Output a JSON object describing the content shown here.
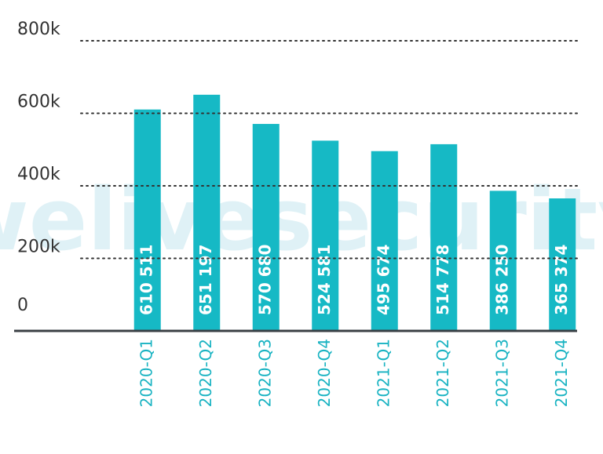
{
  "chart_data": {
    "type": "bar",
    "watermark": "welivesecurity",
    "categories": [
      "2020-Q1",
      "2020-Q2",
      "2020-Q3",
      "2020-Q4",
      "2021-Q1",
      "2021-Q2",
      "2021-Q3",
      "2021-Q4"
    ],
    "values": [
      610511,
      651197,
      570680,
      524581,
      495674,
      514778,
      386250,
      365374
    ],
    "value_labels": [
      "610 511",
      "651 197",
      "570 680",
      "524 581",
      "495 674",
      "514 778",
      "386 250",
      "365 374"
    ],
    "color": "#16b9c5",
    "ylim": [
      0,
      800000
    ],
    "yticks": [
      0,
      {
        "value": 200000,
        "label": "200k"
      },
      {
        "value": 400000,
        "label": "400k"
      },
      {
        "value": 600000,
        "label": "600k"
      },
      {
        "value": 800000,
        "label": "800k"
      }
    ],
    "grid": true
  }
}
